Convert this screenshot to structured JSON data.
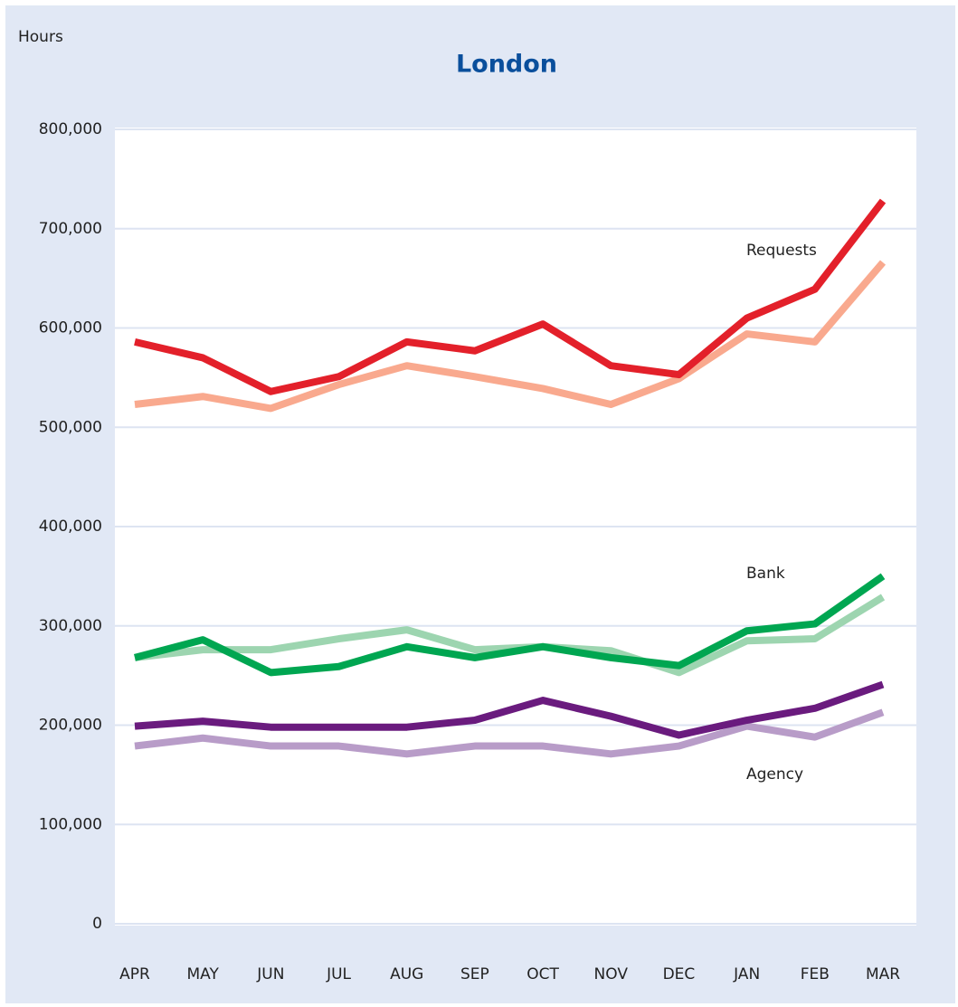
{
  "chart_data": {
    "type": "line",
    "title": "London",
    "y_label": "Hours",
    "categories": [
      "APR",
      "MAY",
      "JUN",
      "JUL",
      "AUG",
      "SEP",
      "OCT",
      "NOV",
      "DEC",
      "JAN",
      "FEB",
      "MAR"
    ],
    "series": [
      {
        "color": "#f9a98e",
        "values": [
          523000,
          531000,
          519000,
          543000,
          562000,
          551000,
          539000,
          523000,
          549000,
          594000,
          586000,
          666000
        ]
      },
      {
        "color": "#e3202a",
        "values": [
          586000,
          570000,
          536000,
          551000,
          586000,
          577000,
          604000,
          562000,
          553000,
          610000,
          639000,
          728000
        ]
      },
      {
        "color": "#9dd5b0",
        "values": [
          268000,
          276000,
          276000,
          287000,
          296000,
          276000,
          279000,
          275000,
          253000,
          285000,
          287000,
          329000
        ]
      },
      {
        "color": "#00a651",
        "values": [
          268000,
          286000,
          253000,
          259000,
          279000,
          268000,
          279000,
          268000,
          260000,
          295000,
          302000,
          350000
        ]
      },
      {
        "color": "#b89cc8",
        "values": [
          179000,
          187000,
          179000,
          179000,
          171000,
          179000,
          179000,
          171000,
          179000,
          199000,
          188000,
          213000
        ]
      },
      {
        "color": "#6a1b7e",
        "values": [
          199000,
          204000,
          198000,
          198000,
          198000,
          205000,
          225000,
          209000,
          190000,
          205000,
          217000,
          241000
        ]
      }
    ],
    "annotations": [
      "Requests",
      "Bank",
      "Agency"
    ],
    "ylim": [
      0,
      800000
    ],
    "yticks": [
      0,
      {
        "value": 100000,
        "label": "100,000"
      },
      {
        "value": 200000,
        "label": "200,000"
      },
      {
        "value": 300000,
        "label": "300,000"
      },
      {
        "value": 400000,
        "label": "400,000"
      },
      {
        "value": 500000,
        "label": "500,000"
      },
      {
        "value": 600000,
        "label": "600,000"
      },
      {
        "value": 700000,
        "label": "700,000"
      },
      {
        "value": 800000,
        "label": "800,000"
      }
    ],
    "grid": true
  }
}
